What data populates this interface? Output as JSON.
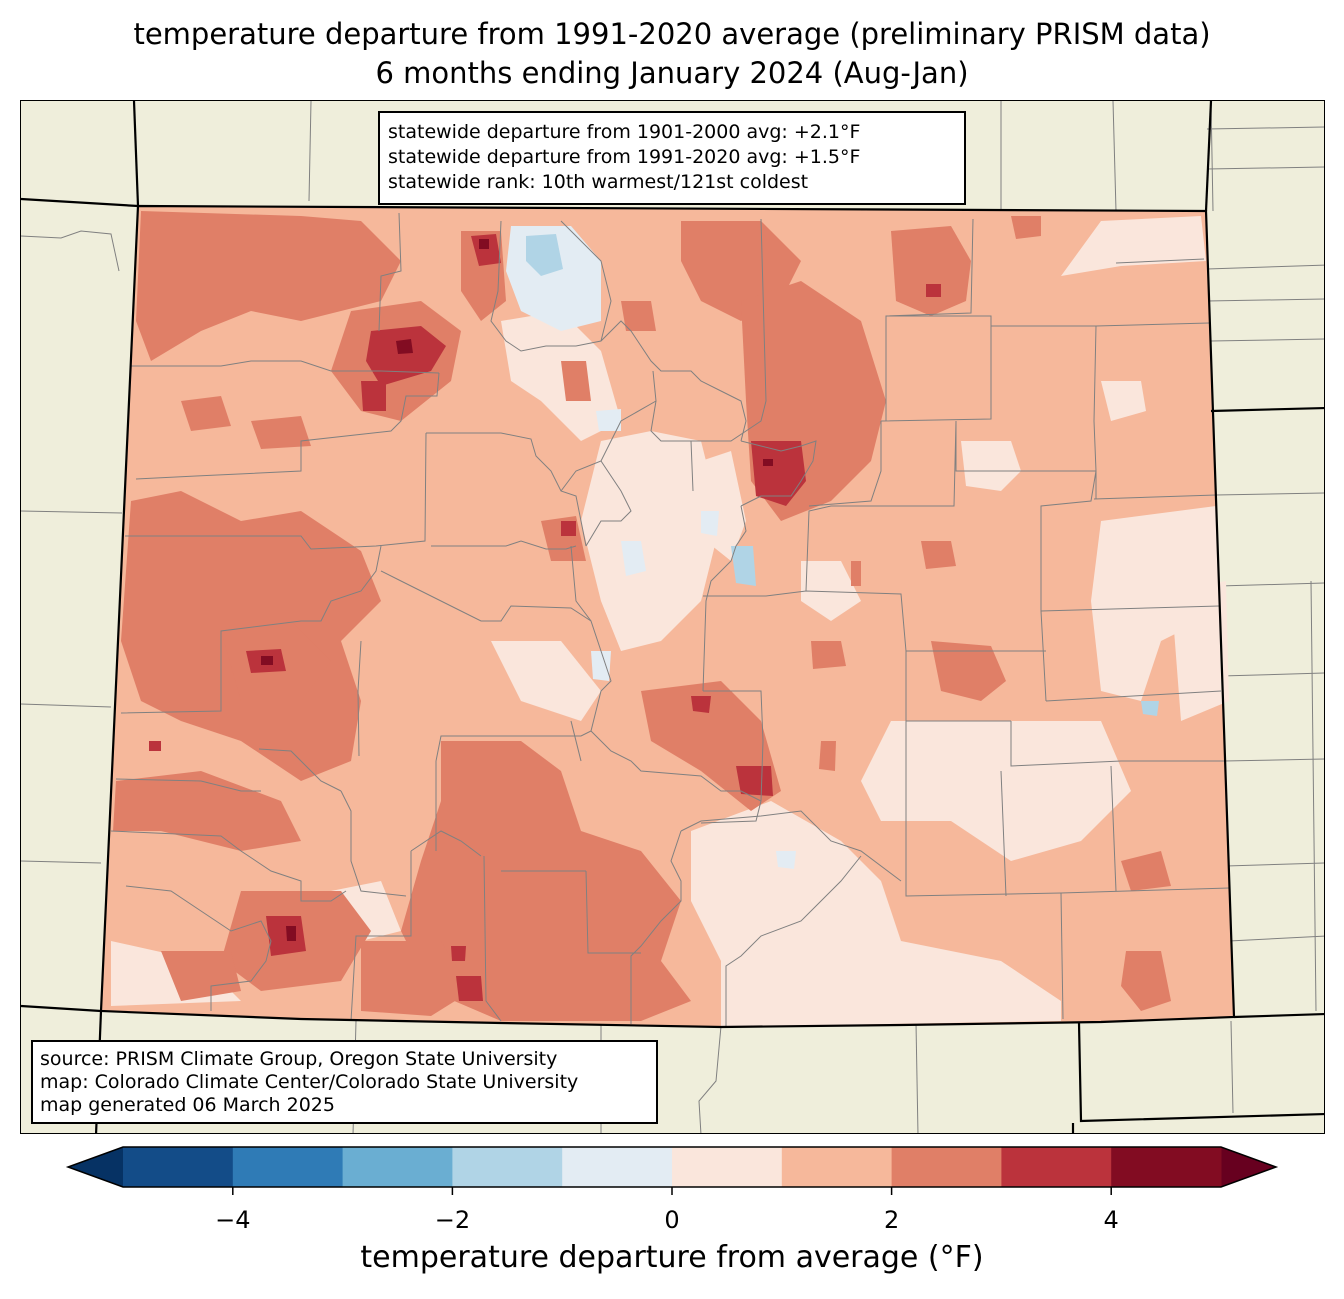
{
  "title": {
    "line1": "temperature departure from 1991-2020 average (preliminary PRISM data)",
    "line2": "6 months ending January 2024 (Aug-Jan)"
  },
  "stats": {
    "line1": "statewide departure from 1901-2000 avg: +2.1°F",
    "line2": "statewide departure from 1991-2020 avg: +1.5°F",
    "line3": "statewide rank: 10th warmest/121st coldest"
  },
  "source": {
    "line1": "source: PRISM Climate Group, Oregon State University",
    "line2": "map: Colorado Climate Center/Colorado State University",
    "line3": "map generated 06 March 2025"
  },
  "colorbar": {
    "label": "temperature departure from average (°F)",
    "ticks": [
      "−4",
      "−2",
      "0",
      "2",
      "4"
    ],
    "tick_values": [
      -4,
      -2,
      0,
      2,
      4
    ],
    "bounds": [
      -5,
      5
    ],
    "levels": [
      -5,
      -4,
      -3,
      -2,
      -1,
      0,
      1,
      2,
      3,
      4,
      5
    ],
    "colors": [
      "#134c88",
      "#2f7bb6",
      "#6aaed2",
      "#b0d4e6",
      "#e3ecf3",
      "#fae6dc",
      "#f6b89b",
      "#e07f67",
      "#bb333c",
      "#820c22"
    ],
    "under_color": "#063264",
    "over_color": "#67001f"
  },
  "map_colors": {
    "background": "#efeedb",
    "county_lines": "#808080",
    "state_lines": "#000000"
  }
}
